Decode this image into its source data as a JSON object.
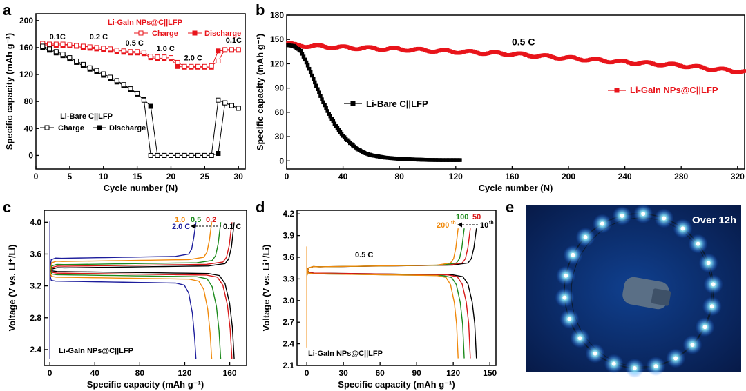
{
  "panels": {
    "a": {
      "label": "a"
    },
    "b": {
      "label": "b"
    },
    "c": {
      "label": "c"
    },
    "d": {
      "label": "d"
    },
    "e": {
      "label": "e",
      "overlay_text": "Over 12h"
    }
  },
  "colors": {
    "red": "#e8141b",
    "black": "#000000",
    "blue": "#1d1d9c",
    "orange": "#f0890b",
    "green": "#1c8a1c",
    "darkred": "#d81818",
    "photo_bg": "#0a2a6e",
    "led": "#7fe3ff"
  },
  "chart_data": [
    {
      "panel": "a",
      "type": "line",
      "xlabel": "Cycle number (N)",
      "ylabel": "Specific capacity (mAh g⁻¹)",
      "xlim": [
        0,
        31
      ],
      "ylim": [
        -20,
        210
      ],
      "xticks": [
        0,
        5,
        10,
        15,
        20,
        25,
        30
      ],
      "yticks": [
        0,
        40,
        80,
        120,
        160,
        200
      ],
      "x": [
        1,
        2,
        3,
        4,
        5,
        6,
        7,
        8,
        9,
        10,
        11,
        12,
        13,
        14,
        15,
        16,
        17,
        18,
        19,
        20,
        21,
        22,
        23,
        24,
        25,
        26,
        27,
        28,
        29,
        30
      ],
      "legend_groups": [
        {
          "title": "Li-GaIn NPs@C||LFP",
          "entries": [
            "Charge",
            "Discharge"
          ],
          "color": "#e8141b"
        },
        {
          "title": "Li-Bare C||LFP",
          "entries": [
            "Charge",
            "Discharge"
          ],
          "color": "#000000"
        }
      ],
      "series": [
        {
          "name": "Discharge",
          "group": "Li-GaIn NPs@C||LFP",
          "marker": "filled",
          "color": "#e8141b",
          "values": [
            164,
            164,
            163,
            163,
            163,
            162,
            160,
            159,
            158,
            157,
            156,
            154,
            153,
            152,
            152,
            151,
            145,
            144,
            144,
            143,
            132,
            131,
            131,
            131,
            131,
            131,
            155,
            156,
            156,
            156
          ]
        },
        {
          "name": "Charge",
          "group": "Li-GaIn NPs@C||LFP",
          "marker": "open",
          "color": "#e8141b",
          "values": [
            166,
            165,
            165,
            165,
            164,
            163,
            162,
            161,
            160,
            159,
            158,
            156,
            155,
            154,
            154,
            153,
            147,
            146,
            146,
            145,
            138,
            132,
            132,
            132,
            132,
            133,
            140,
            157,
            157,
            157
          ]
        },
        {
          "name": "Discharge",
          "group": "Li-Bare C||LFP",
          "marker": "filled",
          "color": "#000000",
          "values": [
            160,
            156,
            152,
            148,
            143,
            138,
            133,
            128,
            124,
            119,
            114,
            109,
            104,
            98,
            91,
            83,
            73,
            0,
            0,
            0,
            0,
            0,
            0,
            0,
            0,
            0,
            3,
            78,
            74,
            70
          ]
        },
        {
          "name": "Charge",
          "group": "Li-Bare C||LFP",
          "marker": "open",
          "color": "#000000",
          "values": [
            162,
            158,
            154,
            150,
            145,
            140,
            135,
            130,
            126,
            121,
            116,
            111,
            105,
            99,
            92,
            82,
            0,
            0,
            0,
            0,
            0,
            0,
            0,
            0,
            0,
            0,
            82,
            78,
            74,
            70
          ]
        }
      ],
      "annotations": [
        {
          "text": "0.1C",
          "x": 3.2,
          "y": 172
        },
        {
          "text": "0.2 C",
          "x": 9.3,
          "y": 172
        },
        {
          "text": "0.5 C",
          "x": 14.6,
          "y": 163
        },
        {
          "text": "1.0 C",
          "x": 19.2,
          "y": 155
        },
        {
          "text": "2.0 C",
          "x": 23.3,
          "y": 141
        },
        {
          "text": "0.1C",
          "x": 29.3,
          "y": 167
        }
      ]
    },
    {
      "panel": "b",
      "type": "line",
      "xlabel": "Cycle number (N)",
      "ylabel": "Specific capacity (mAh g⁻¹)",
      "xlim": [
        0,
        325
      ],
      "ylim": [
        -10,
        180
      ],
      "xticks": [
        0,
        40,
        80,
        120,
        160,
        200,
        240,
        280,
        320
      ],
      "yticks": [
        0,
        30,
        60,
        90,
        120,
        150,
        180
      ],
      "annotation": "0.5 C",
      "series": [
        {
          "name": "Li-GaIn NPs@C||LFP",
          "color": "#e8141b",
          "marker": "filled",
          "x": [
            1,
            5,
            40,
            80,
            120,
            160,
            200,
            240,
            280,
            300,
            325
          ],
          "values": [
            145,
            143,
            140,
            138,
            135,
            132,
            127,
            122,
            118,
            114,
            110
          ]
        },
        {
          "name": "Li-Bare C||LFP",
          "color": "#000000",
          "marker": "filled",
          "x": [
            1,
            5,
            10,
            15,
            20,
            25,
            30,
            35,
            40,
            45,
            50,
            55,
            60,
            70,
            80,
            90,
            100,
            110,
            123
          ],
          "values": [
            143,
            142,
            136,
            118,
            97,
            76,
            58,
            43,
            31,
            22,
            15,
            10,
            7,
            4,
            2.5,
            1.8,
            1.2,
            1,
            1
          ]
        }
      ]
    },
    {
      "panel": "c",
      "type": "line",
      "xlabel": "Specific capacity (mAh g⁻¹)",
      "ylabel": "Voltage (V vs. Li⁺/Li)",
      "xlim": [
        -5,
        175
      ],
      "ylim": [
        2.2,
        4.15
      ],
      "xticks": [
        0,
        40,
        80,
        120,
        160
      ],
      "yticks": [
        2.4,
        2.8,
        3.2,
        3.6,
        4.0
      ],
      "annotation": "Li-GaIn NPs@C||LFP",
      "rate_labels": [
        {
          "text": "1.0",
          "color": "#f0890b"
        },
        {
          "text": "0.5",
          "color": "#1c8a1c"
        },
        {
          "text": "0.2",
          "color": "#d81818"
        },
        {
          "text": "2.0 C",
          "color": "#1d1d9c"
        },
        {
          "text": "0.1 C",
          "color": "#000000"
        }
      ],
      "series": [
        {
          "rate": "0.1 C",
          "color": "#000000",
          "cap": 164,
          "charge_plateau": 3.44,
          "discharge_plateau": 3.38
        },
        {
          "rate": "0.2",
          "color": "#d81818",
          "cap": 162,
          "charge_plateau": 3.46,
          "discharge_plateau": 3.36
        },
        {
          "rate": "0.5",
          "color": "#1c8a1c",
          "cap": 152,
          "charge_plateau": 3.48,
          "discharge_plateau": 3.34
        },
        {
          "rate": "1.0",
          "color": "#f0890b",
          "cap": 144,
          "charge_plateau": 3.52,
          "discharge_plateau": 3.31
        },
        {
          "rate": "2.0 C",
          "color": "#1d1d9c",
          "cap": 130,
          "charge_plateau": 3.56,
          "discharge_plateau": 3.26
        }
      ]
    },
    {
      "panel": "d",
      "type": "line",
      "xlabel": "Specific capacity (mAh g⁻¹)",
      "ylabel": "Voltage (V vs. Li⁺/Li)",
      "xlim": [
        -8,
        155
      ],
      "ylim": [
        2.1,
        4.25
      ],
      "xticks": [
        0,
        30,
        60,
        90,
        120,
        150
      ],
      "yticks": [
        2.1,
        2.4,
        2.7,
        3.0,
        3.3,
        3.6,
        3.9,
        4.2
      ],
      "annotations": [
        "0.5 C",
        "Li-GaIn NPs@C||LFP"
      ],
      "cycle_labels": [
        {
          "text": "200",
          "sup": "th",
          "color": "#f0890b"
        },
        {
          "text": "100",
          "color": "#1c8a1c"
        },
        {
          "text": "50",
          "color": "#d81818"
        },
        {
          "text": "10",
          "sup": "th",
          "color": "#000000"
        }
      ],
      "series": [
        {
          "cycle": "10th",
          "color": "#000000",
          "cap": 139,
          "charge_plateau": 3.48,
          "discharge_plateau": 3.38
        },
        {
          "cycle": "50",
          "color": "#d81818",
          "cap": 134,
          "charge_plateau": 3.48,
          "discharge_plateau": 3.38
        },
        {
          "cycle": "100",
          "color": "#1c8a1c",
          "cap": 129,
          "charge_plateau": 3.48,
          "discharge_plateau": 3.37
        },
        {
          "cycle": "200th",
          "color": "#f0890b",
          "cap": 124,
          "charge_plateau": 3.48,
          "discharge_plateau": 3.37
        }
      ]
    }
  ]
}
